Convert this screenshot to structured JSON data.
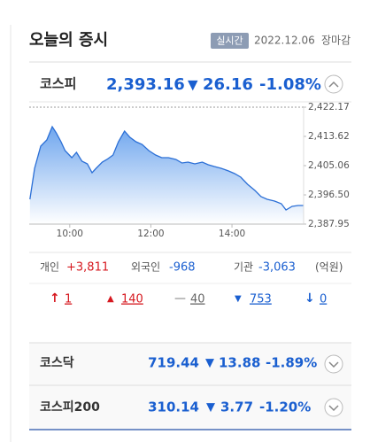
{
  "header": {
    "title": "오늘의 증시",
    "badge": "실시간",
    "date": "2022.12.06",
    "status": "장마감"
  },
  "main_index": {
    "name": "코스피",
    "value": "2,393.16",
    "change": "26.16",
    "change_rate": "-1.08%"
  },
  "chart_data": {
    "type": "line",
    "x": [
      541,
      548,
      557,
      566,
      574,
      580,
      587,
      593,
      603,
      610,
      618,
      626,
      633,
      639,
      648,
      655,
      664,
      672,
      681,
      689,
      698,
      707,
      717,
      727,
      736,
      746,
      757,
      766,
      775,
      785,
      796,
      805,
      814,
      824,
      835,
      844,
      853,
      863,
      874,
      883,
      892,
      903,
      913,
      920,
      929,
      938,
      946
    ],
    "series": [
      {
        "color": "#2b6fd6",
        "values": [
          2395.21,
          2404.28,
          2410.76,
          2412.58,
          2416.47,
          2414.65,
          2412.06,
          2409.47,
          2407.39,
          2408.95,
          2406.36,
          2405.58,
          2402.99,
          2404.28,
          2406.1,
          2406.87,
          2408.17,
          2412.06,
          2415.17,
          2413.36,
          2412.06,
          2411.28,
          2409.47,
          2408.17,
          2407.39,
          2407.39,
          2406.87,
          2405.84,
          2406.1,
          2405.58,
          2406.1,
          2405.32,
          2404.8,
          2404.28,
          2403.5,
          2402.73,
          2401.69,
          2399.62,
          2397.8,
          2395.99,
          2395.21,
          2394.69,
          2393.91,
          2392.1,
          2393.13,
          2393.39,
          2393.39
        ]
      }
    ],
    "xlim": [
      540,
      946
    ],
    "xticks": [
      {
        "value": 600,
        "label": "10:00"
      },
      {
        "value": 720,
        "label": "12:00"
      },
      {
        "value": 840,
        "label": "14:00"
      }
    ],
    "ylim": [
      2387.95,
      2422.17
    ],
    "yticks": [
      {
        "value": 2387.95,
        "label": "2,387.95"
      },
      {
        "value": 2396.5,
        "label": "2,396.50"
      },
      {
        "value": 2405.06,
        "label": "2,405.06"
      },
      {
        "value": 2413.62,
        "label": "2,413.62"
      },
      {
        "value": 2422.17,
        "label": "2,422.17"
      }
    ]
  },
  "investors": [
    {
      "label": "개인",
      "value": "+3,811"
    },
    {
      "label": "외국인",
      "value": "-968"
    },
    {
      "label": "기관",
      "value": "-3,063"
    }
  ],
  "unit": "(억원)",
  "breadth": [
    "1",
    "140",
    "40",
    "753",
    "0"
  ],
  "other_indices": [
    {
      "name": "코스닥",
      "value": "719.44",
      "change": "13.88",
      "change_rate": "-1.89%"
    },
    {
      "name": "코스피200",
      "value": "310.14",
      "change": "3.77",
      "change_rate": "-1.20%"
    }
  ]
}
